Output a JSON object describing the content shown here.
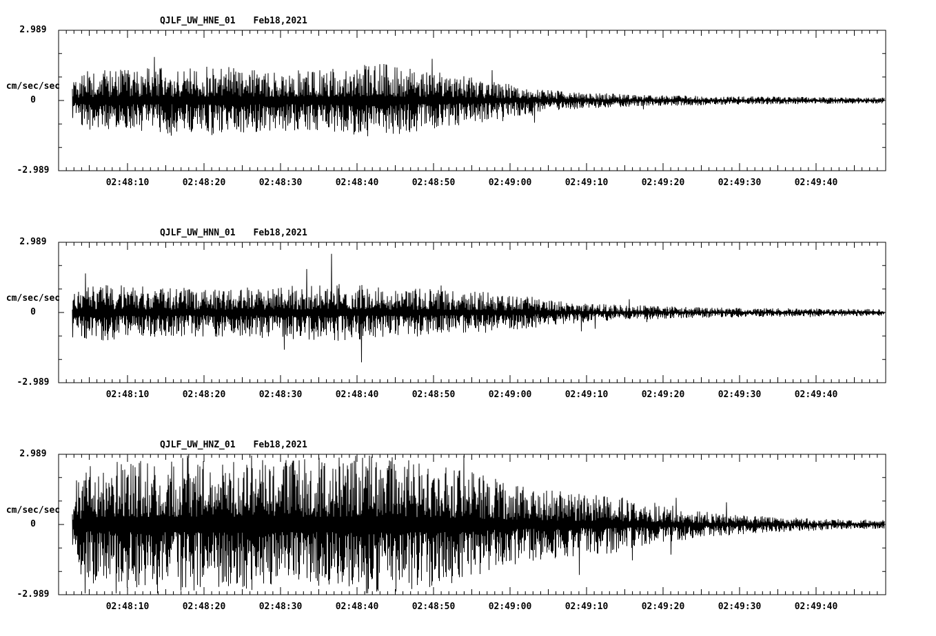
{
  "page": {
    "background": "#ffffff",
    "trace_color": "#000000"
  },
  "chart_data": [
    {
      "type": "line",
      "subtype": "seismogram-waveform",
      "station": "QJLF_UW_HNE_01",
      "date": "Feb18,2021",
      "title": "QJLF_UW_HNE_01   Feb18,2021",
      "ylabel": "cm/sec/sec",
      "ylim": [
        -2.989,
        2.989
      ],
      "y_tick_labels": [
        "2.989",
        "0",
        "-2.989"
      ],
      "x_tick_labels": [
        "02:48:10",
        "02:48:20",
        "02:48:30",
        "02:48:40",
        "02:48:50",
        "02:49:00",
        "02:49:10",
        "02:49:20",
        "02:49:30",
        "02:49:40"
      ],
      "x_tick_interval_seconds": 10,
      "amplitude_envelope": {
        "units": "fraction of ylim vs fraction of trace duration",
        "points": [
          [
            0.0,
            0.28
          ],
          [
            0.02,
            0.4
          ],
          [
            0.06,
            0.42
          ],
          [
            0.12,
            0.44
          ],
          [
            0.18,
            0.47
          ],
          [
            0.22,
            0.42
          ],
          [
            0.28,
            0.4
          ],
          [
            0.33,
            0.44
          ],
          [
            0.38,
            0.5
          ],
          [
            0.41,
            0.44
          ],
          [
            0.45,
            0.38
          ],
          [
            0.5,
            0.3
          ],
          [
            0.54,
            0.22
          ],
          [
            0.58,
            0.15
          ],
          [
            0.63,
            0.11
          ],
          [
            0.7,
            0.08
          ],
          [
            0.78,
            0.06
          ],
          [
            0.88,
            0.05
          ],
          [
            1.0,
            0.04
          ]
        ]
      },
      "seed": 42
    },
    {
      "type": "line",
      "subtype": "seismogram-waveform",
      "station": "QJLF_UW_HNN_01",
      "date": "Feb18,2021",
      "title": "QJLF_UW_HNN_01   Feb18,2021",
      "ylabel": "cm/sec/sec",
      "ylim": [
        -2.989,
        2.989
      ],
      "y_tick_labels": [
        "2.989",
        "0",
        "-2.989"
      ],
      "x_tick_labels": [
        "02:48:10",
        "02:48:20",
        "02:48:30",
        "02:48:40",
        "02:48:50",
        "02:49:00",
        "02:49:10",
        "02:49:20",
        "02:49:30",
        "02:49:40"
      ],
      "x_tick_interval_seconds": 10,
      "amplitude_envelope": {
        "units": "fraction of ylim vs fraction of trace duration",
        "points": [
          [
            0.0,
            0.34
          ],
          [
            0.04,
            0.38
          ],
          [
            0.1,
            0.34
          ],
          [
            0.16,
            0.32
          ],
          [
            0.22,
            0.34
          ],
          [
            0.28,
            0.36
          ],
          [
            0.33,
            0.38
          ],
          [
            0.38,
            0.34
          ],
          [
            0.44,
            0.32
          ],
          [
            0.5,
            0.28
          ],
          [
            0.55,
            0.24
          ],
          [
            0.6,
            0.16
          ],
          [
            0.66,
            0.11
          ],
          [
            0.74,
            0.08
          ],
          [
            0.84,
            0.06
          ],
          [
            1.0,
            0.045
          ]
        ]
      },
      "seed": 7
    },
    {
      "type": "line",
      "subtype": "seismogram-waveform",
      "station": "QJLF_UW_HNZ_01",
      "date": "Feb18,2021",
      "title": "QJLF_UW_HNZ_01   Feb18,2021",
      "ylabel": "cm/sec/sec",
      "ylim": [
        -2.989,
        2.989
      ],
      "y_tick_labels": [
        "2.989",
        "0",
        "-2.989"
      ],
      "x_tick_labels": [
        "02:48:10",
        "02:48:20",
        "02:48:30",
        "02:48:40",
        "02:48:50",
        "02:49:00",
        "02:49:10",
        "02:49:20",
        "02:49:30",
        "02:49:40"
      ],
      "x_tick_interval_seconds": 10,
      "amplitude_envelope": {
        "units": "fraction of ylim vs fraction of trace duration",
        "points": [
          [
            0.0,
            0.55
          ],
          [
            0.02,
            0.78
          ],
          [
            0.06,
            0.85
          ],
          [
            0.12,
            0.88
          ],
          [
            0.18,
            0.92
          ],
          [
            0.24,
            0.86
          ],
          [
            0.3,
            0.88
          ],
          [
            0.36,
            0.95
          ],
          [
            0.4,
            0.9
          ],
          [
            0.44,
            0.85
          ],
          [
            0.48,
            0.75
          ],
          [
            0.52,
            0.62
          ],
          [
            0.56,
            0.5
          ],
          [
            0.62,
            0.42
          ],
          [
            0.67,
            0.38
          ],
          [
            0.72,
            0.26
          ],
          [
            0.78,
            0.17
          ],
          [
            0.85,
            0.11
          ],
          [
            0.92,
            0.08
          ],
          [
            1.0,
            0.06
          ]
        ]
      },
      "seed": 99
    }
  ]
}
